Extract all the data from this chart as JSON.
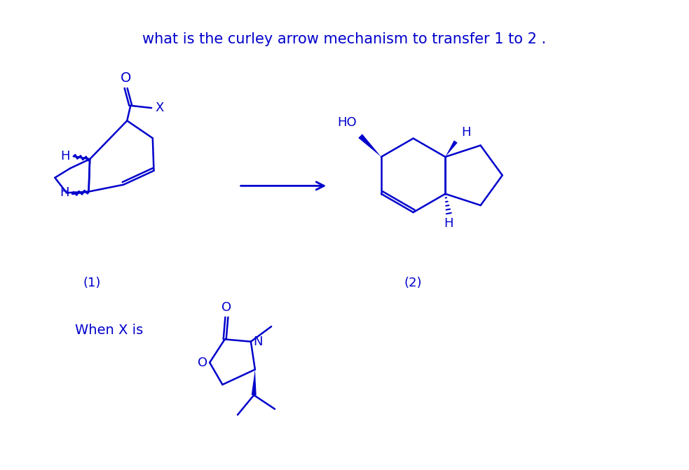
{
  "title": "what is the curley arrow mechanism to transfer 1 to 2 .",
  "title_color": "#0000CC",
  "title_fontsize": 15,
  "chem_color": "#0000CC",
  "bg_color": "#FFFFFF",
  "label1": "(1)",
  "label2": "(2)",
  "when_x_is": "When X is"
}
